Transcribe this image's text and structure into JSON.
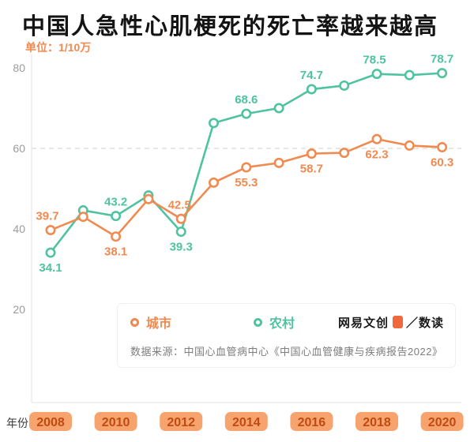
{
  "title": "中国人急性心肌梗死的死亡率越来越高",
  "unit_label": "单位：1/10万",
  "colors": {
    "accent_orange": "#F08A50",
    "accent_green": "#4FC3A1",
    "pill_bg": "#F7A36D",
    "pill_text": "#C04A12",
    "axis": "#E3E3E3",
    "tick_label": "#9B9B9B",
    "dashed_line": "#CFCFCF",
    "brand_badge": "#EE6A3C"
  },
  "chart_data": {
    "type": "line",
    "title": "中国人急性心肌梗死的死亡率越来越高",
    "unit": "1/10万",
    "xlabel": "年份",
    "ylabel": "",
    "ylim": [
      0,
      80
    ],
    "yticks": [
      20,
      40,
      60,
      80
    ],
    "dashed_line_y": 60,
    "grid": "single-dashed-line-at-60",
    "legend_position": "bottom-center-box",
    "x": [
      2008,
      2009,
      2010,
      2011,
      2012,
      2013,
      2014,
      2015,
      2016,
      2017,
      2018,
      2019,
      2020
    ],
    "x_ticks": [
      2008,
      2010,
      2012,
      2014,
      2016,
      2018,
      2020
    ],
    "series": [
      {
        "name": "城市",
        "color": "#F08A50",
        "values": [
          39.7,
          43.0,
          38.1,
          47.4,
          42.5,
          51.5,
          55.3,
          56.4,
          58.7,
          58.9,
          62.3,
          60.7,
          60.3
        ]
      },
      {
        "name": "农村",
        "color": "#4FC3A1",
        "values": [
          34.1,
          44.6,
          43.2,
          48.3,
          39.3,
          66.3,
          68.6,
          70.0,
          74.7,
          75.6,
          78.5,
          78.2,
          78.7
        ]
      }
    ],
    "point_labels": [
      {
        "series": 0,
        "year": 2008,
        "text": "39.7",
        "pos": "above",
        "dx": -4
      },
      {
        "series": 1,
        "year": 2008,
        "text": "34.1",
        "pos": "below",
        "dx": 0
      },
      {
        "series": 1,
        "year": 2010,
        "text": "43.2",
        "pos": "above",
        "dx": 0
      },
      {
        "series": 0,
        "year": 2010,
        "text": "38.1",
        "pos": "below",
        "dx": 0
      },
      {
        "series": 0,
        "year": 2012,
        "text": "42.5",
        "pos": "above",
        "dx": -2
      },
      {
        "series": 1,
        "year": 2012,
        "text": "39.3",
        "pos": "below",
        "dx": 0
      },
      {
        "series": 1,
        "year": 2014,
        "text": "68.6",
        "pos": "above",
        "dx": 0
      },
      {
        "series": 0,
        "year": 2014,
        "text": "55.3",
        "pos": "below",
        "dx": 0
      },
      {
        "series": 1,
        "year": 2016,
        "text": "74.7",
        "pos": "above",
        "dx": 0
      },
      {
        "series": 0,
        "year": 2016,
        "text": "58.7",
        "pos": "below",
        "dx": 0
      },
      {
        "series": 1,
        "year": 2018,
        "text": "78.5",
        "pos": "above",
        "dx": -3
      },
      {
        "series": 0,
        "year": 2018,
        "text": "62.3",
        "pos": "below",
        "dx": 0
      },
      {
        "series": 1,
        "year": 2020,
        "text": "78.7",
        "pos": "above",
        "dx": 0
      },
      {
        "series": 0,
        "year": 2020,
        "text": "60.3",
        "pos": "below",
        "dx": 0
      }
    ]
  },
  "source_note": "数据来源：中国心血管病中心《中国心血管健康与疾病报告2022》",
  "branding": {
    "name": "网易文创",
    "separator": "／",
    "product": "数读"
  }
}
